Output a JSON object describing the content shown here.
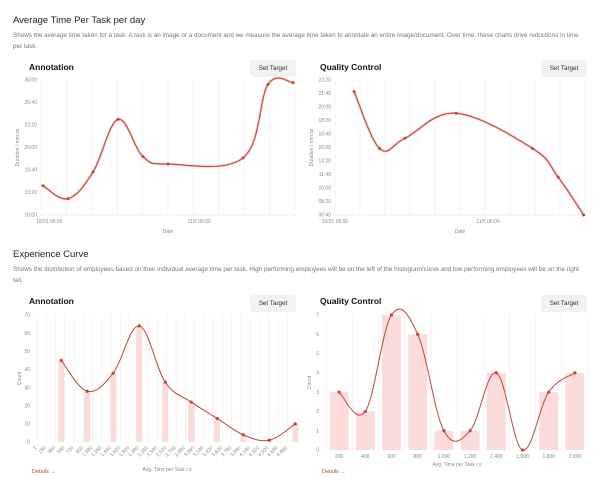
{
  "section1": {
    "title": "Average Time Per Task per day",
    "description": "Shows the average time taken for a task. A task is an image or a document and we measure the average time taken to annotate an entire image/document. Over time, these charts drive reductions in time per task."
  },
  "section2": {
    "title": "Experience Curve",
    "description": "Shows the distribution of employees based on their individual average time per task. High performing employees will be on the left of the histogram/curve and low performing employees will be on the right tail."
  },
  "buttons": {
    "set_target": "Set Target",
    "details": "Details →"
  },
  "colors": {
    "line": "#c0453a",
    "bar": "#fbdcda",
    "grid": "#ececec"
  },
  "chart_data": [
    {
      "id": "ann-time",
      "card_title": "Annotation",
      "type": "line",
      "xlabel": "Date",
      "ylabel": "Duration / mm:ss",
      "x_tick_labels": [
        "10/31 06:00",
        "11/5 06:00"
      ],
      "y_tick_labels": [
        "10:00",
        "13:20",
        "16:40",
        "20:00",
        "23:20",
        "26:40",
        "30:00"
      ],
      "ylim": [
        "10:00",
        "30:00"
      ],
      "x": [
        "10/31 00:00",
        "11/1 00:00",
        "11/2 00:00",
        "11/3 00:00",
        "11/4 00:00",
        "11/5 00:00",
        "11/8 00:00",
        "11/9 00:00",
        "11/10 00:00"
      ],
      "y": [
        "14:20",
        "12:25",
        "16:22",
        "24:10",
        "18:39",
        "17:33",
        "18:27",
        "29:21",
        "29:36"
      ]
    },
    {
      "id": "qc-time",
      "card_title": "Quality Control",
      "type": "line",
      "xlabel": "Date",
      "ylabel": "Duration / mm:ss",
      "x_tick_labels": [
        "10/31 06:00",
        "11/5 06:00"
      ],
      "y_tick_labels": [
        "06:40",
        "08:20",
        "10:00",
        "11:40",
        "13:20",
        "15:00",
        "16:40",
        "18:20",
        "20:00",
        "21:40",
        "23:20"
      ],
      "ylim": [
        "06:40",
        "23:20"
      ],
      "x": [
        "11/1 00:00",
        "11/2 00:00",
        "11/3 00:00",
        "11/5 00:00",
        "11/8 00:00",
        "11/9 00:00",
        "11/10 00:00"
      ],
      "y": [
        "21:54",
        "14:53",
        "16:09",
        "19:14",
        "14:53",
        "11:21",
        "06:40"
      ]
    },
    {
      "id": "ann-hist",
      "card_title": "Annotation",
      "type": "bar",
      "xlabel": "Avg. Time per Task / s",
      "ylabel": "Count",
      "x_tick_labels": [
        "1",
        "180",
        "360",
        "540",
        "720",
        "900",
        "1,080",
        "1,260",
        "1,440",
        "1,620",
        "1,800",
        "1,980",
        "2,160",
        "2,340",
        "2,520",
        "2,700",
        "2,880",
        "3,060",
        "3,240",
        "3,420",
        "3,600",
        "3,780",
        "3,960",
        "4,140",
        "4,320",
        "4,500",
        "4,680",
        "4,860"
      ],
      "y_tick_labels": [
        "0",
        "10",
        "20",
        "30",
        "40",
        "50",
        "60",
        "70"
      ],
      "ylim": [
        0,
        70
      ],
      "x": [
        470,
        975,
        1480,
        1985,
        2490,
        2995,
        3500,
        4005,
        4510,
        5015
      ],
      "values": [
        45,
        28,
        38,
        64,
        33,
        22,
        13,
        4,
        1,
        10
      ]
    },
    {
      "id": "qc-hist",
      "card_title": "Quality Control",
      "type": "bar",
      "xlabel": "Avg. Time per Task / s",
      "ylabel": "Count",
      "categories": [
        "200",
        "400",
        "600",
        "800",
        "1,000",
        "1,200",
        "1,400",
        "1,600",
        "1,800",
        "2,000"
      ],
      "y_tick_labels": [
        "0",
        "1",
        "2",
        "3",
        "4",
        "5",
        "6",
        "7"
      ],
      "ylim": [
        0,
        7
      ],
      "values": [
        3,
        2,
        7,
        6,
        1,
        1,
        4,
        0,
        3,
        4
      ]
    }
  ]
}
